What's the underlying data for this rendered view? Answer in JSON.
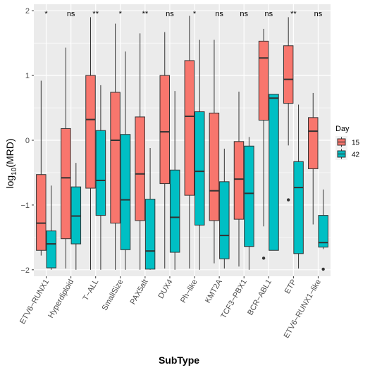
{
  "chart_data": {
    "type": "boxplot",
    "xlabel": "SubType",
    "ylabel_main": "log",
    "ylabel_sub": "10",
    "ylabel_rest": "(MRD)",
    "ylim": [
      -2.1,
      2.1
    ],
    "yticks": [
      -2,
      -1,
      0,
      1,
      2
    ],
    "ytick_labels": [
      "−2",
      "−1",
      "0",
      "1",
      "2"
    ],
    "grid": true,
    "legend_position": "right",
    "legend": {
      "title": "Day",
      "items": [
        {
          "label": "15",
          "color": "#F8766D"
        },
        {
          "label": "42",
          "color": "#00BFC4"
        }
      ]
    },
    "categories": [
      "ETV6−RUNX1",
      "Hyperdiploid",
      "T−ALL",
      "SmallSize",
      "PAX5alt",
      "DUX4",
      "Ph−like",
      "KMT2A",
      "TCF3−PBX1",
      "BCR−ABL1",
      "ETP",
      "ETV6−RUNX1−like"
    ],
    "significance": [
      "*",
      "ns",
      "**",
      "*",
      "**",
      "ns",
      "*",
      "ns",
      "ns",
      "ns",
      "**",
      "ns"
    ],
    "series": [
      {
        "name": "15",
        "color": "#F8766D",
        "boxes": [
          {
            "min": -1.78,
            "q1": -1.7,
            "median": -1.28,
            "q3": -0.53,
            "max": 0.92,
            "outliers": []
          },
          {
            "min": -1.98,
            "q1": -1.52,
            "median": -0.58,
            "q3": 0.18,
            "max": 1.43,
            "outliers": []
          },
          {
            "min": -2.0,
            "q1": -0.74,
            "median": 0.32,
            "q3": 1.0,
            "max": 1.9,
            "outliers": []
          },
          {
            "min": -2.0,
            "q1": -1.28,
            "median": 0.0,
            "q3": 0.74,
            "max": 1.8,
            "outliers": []
          },
          {
            "min": -2.0,
            "q1": -1.24,
            "median": -0.52,
            "q3": 0.36,
            "max": 1.65,
            "outliers": []
          },
          {
            "min": -1.98,
            "q1": -0.67,
            "median": 0.13,
            "q3": 1.0,
            "max": 1.67,
            "outliers": []
          },
          {
            "min": -1.98,
            "q1": -0.85,
            "median": 0.37,
            "q3": 1.23,
            "max": 1.92,
            "outliers": []
          },
          {
            "min": -1.9,
            "q1": -1.24,
            "median": -0.78,
            "q3": 0.42,
            "max": 1.55,
            "outliers": []
          },
          {
            "min": -1.95,
            "q1": -1.22,
            "median": -0.6,
            "q3": -0.02,
            "max": 0.75,
            "outliers": []
          },
          {
            "min": -1.33,
            "q1": 0.31,
            "median": 1.27,
            "q3": 1.53,
            "max": 1.72,
            "outliers": [
              -1.82
            ]
          },
          {
            "min": -0.08,
            "q1": 0.57,
            "median": 0.94,
            "q3": 1.46,
            "max": 1.9,
            "outliers": [
              -0.92
            ]
          },
          {
            "min": -1.3,
            "q1": -0.44,
            "median": 0.14,
            "q3": 0.35,
            "max": 0.73,
            "outliers": []
          }
        ]
      },
      {
        "name": "42",
        "color": "#00BFC4",
        "boxes": [
          {
            "min": -2.0,
            "q1": -1.97,
            "median": -1.6,
            "q3": -1.4,
            "max": -0.7,
            "outliers": []
          },
          {
            "min": -2.0,
            "q1": -1.6,
            "median": -1.17,
            "q3": -0.72,
            "max": -0.35,
            "outliers": []
          },
          {
            "min": -2.0,
            "q1": -1.16,
            "median": -0.62,
            "q3": 0.15,
            "max": 0.85,
            "outliers": []
          },
          {
            "min": -2.0,
            "q1": -1.69,
            "median": -0.92,
            "q3": 0.09,
            "max": 1.37,
            "outliers": []
          },
          {
            "min": -2.0,
            "q1": -1.99,
            "median": -1.71,
            "q3": -0.91,
            "max": -0.12,
            "outliers": []
          },
          {
            "min": -2.0,
            "q1": -1.73,
            "median": -1.19,
            "q3": -0.46,
            "max": 0.76,
            "outliers": []
          },
          {
            "min": -2.0,
            "q1": -1.31,
            "median": -0.48,
            "q3": 0.44,
            "max": 1.55,
            "outliers": []
          },
          {
            "min": -1.98,
            "q1": -1.83,
            "median": -1.47,
            "q3": -0.64,
            "max": -0.13,
            "outliers": []
          },
          {
            "min": -2.0,
            "q1": -1.64,
            "median": -0.82,
            "q3": -0.09,
            "max": 0.05,
            "outliers": []
          },
          {
            "min": -1.7,
            "q1": -1.7,
            "median": 0.65,
            "q3": 0.71,
            "max": 0.71,
            "outliers": []
          },
          {
            "min": -1.98,
            "q1": -1.75,
            "median": -0.73,
            "q3": -0.33,
            "max": 0.55,
            "outliers": []
          },
          {
            "min": -1.68,
            "q1": -1.65,
            "median": -1.58,
            "q3": -1.16,
            "max": -0.76,
            "outliers": [
              -1.99
            ]
          }
        ]
      }
    ]
  }
}
